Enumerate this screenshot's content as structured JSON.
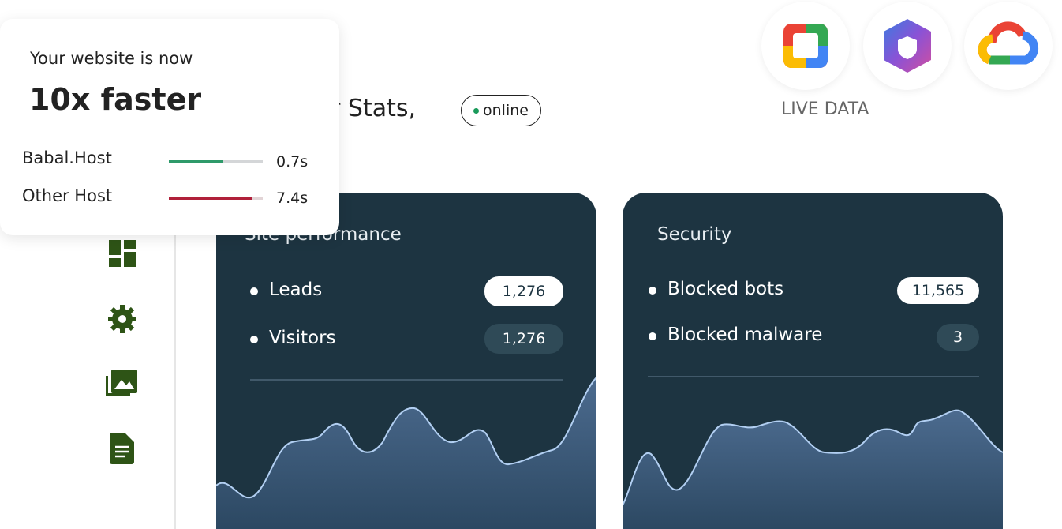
{
  "promo": {
    "subtitle": "Your website is now",
    "headline": "10x faster",
    "hosts": [
      {
        "name": "Babal.Host",
        "time": "0.7s"
      },
      {
        "name": "Other Host",
        "time": "7.4s"
      }
    ]
  },
  "header": {
    "title": "ur Stats,",
    "status": "online",
    "live_label": "LIVE DATA"
  },
  "cards": [
    {
      "title": "Site performance",
      "rows": [
        {
          "label": "Leads",
          "value": "1,276"
        },
        {
          "label": "Visitors",
          "value": "1,276"
        }
      ]
    },
    {
      "title": "Security",
      "rows": [
        {
          "label": "Blocked bots",
          "value": "11,565"
        },
        {
          "label": "Blocked malware",
          "value": "3"
        }
      ]
    }
  ]
}
